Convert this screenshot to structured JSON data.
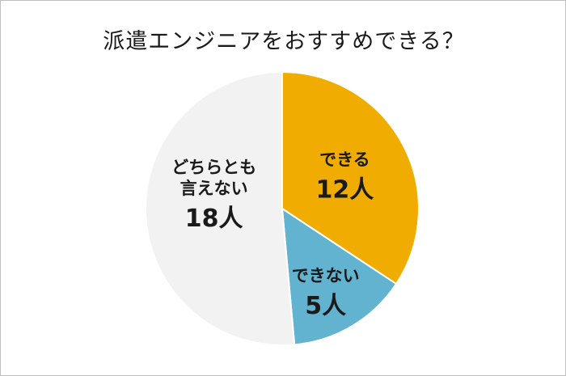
{
  "chart_data": {
    "type": "pie",
    "title": "派遣エンジニアをおすすめできる？",
    "slices": [
      {
        "label": "できる",
        "value": 12,
        "value_label": "12人",
        "color": "#f0ac00"
      },
      {
        "label": "できない",
        "value": 5,
        "value_label": "5人",
        "color": "#62b3cf"
      },
      {
        "label": "どちらとも\n言えない",
        "value": 18,
        "value_label": "18人",
        "color": "#f2f2f2"
      }
    ],
    "start": "12 o'clock",
    "direction": "clockwise",
    "legend": "none"
  }
}
